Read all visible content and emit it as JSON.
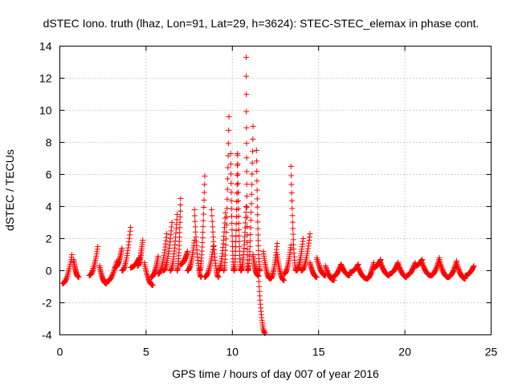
{
  "chart_data": {
    "type": "scatter",
    "title": "dSTEC Iono. truth (lhaz, Lon=91, Lat=29, h=3624): STEC-STEC_elemax in phase cont.",
    "xlabel": "GPS time / hours of day 007 of year 2016",
    "ylabel": "dSTEC  / TECUs",
    "xlim": [
      0,
      25
    ],
    "ylim": [
      -4,
      14
    ],
    "x_ticks": [
      "0",
      "5",
      "10",
      "15",
      "20",
      "25"
    ],
    "x_tick_values": [
      0,
      5,
      10,
      15,
      20,
      25
    ],
    "y_ticks": [
      "-4",
      "-2",
      "0",
      "2",
      "4",
      "6",
      "8",
      "10",
      "12",
      "14"
    ],
    "y_tick_values": [
      -4,
      -2,
      0,
      2,
      4,
      6,
      8,
      10,
      12,
      14
    ],
    "grid": true,
    "marker": "+",
    "color": "#ff0000",
    "tracks": [
      {
        "x_start": 0.15,
        "x_end": 0.7,
        "y_start": -0.8,
        "y_end": 1.0,
        "shape": "rise"
      },
      {
        "x_start": 0.8,
        "x_end": 1.1,
        "y_start": 0.7,
        "y_end": -0.4,
        "shape": "fall"
      },
      {
        "x_start": 1.7,
        "x_end": 2.2,
        "y_start": -0.3,
        "y_end": 1.5,
        "shape": "rise"
      },
      {
        "x_start": 2.3,
        "x_end": 2.7,
        "y_start": 0.3,
        "y_end": -0.8,
        "shape": "fall"
      },
      {
        "x_start": 2.7,
        "x_end": 3.3,
        "y_start": -0.7,
        "y_end": 0.6,
        "shape": "rise"
      },
      {
        "x_start": 3.2,
        "x_end": 3.6,
        "y_start": 0.2,
        "y_end": 1.4,
        "shape": "rise"
      },
      {
        "x_start": 3.6,
        "x_end": 4.1,
        "y_start": 0.0,
        "y_end": 2.7,
        "shape": "rise"
      },
      {
        "x_start": 4.1,
        "x_end": 4.6,
        "y_start": 0.2,
        "y_end": 0.8,
        "shape": "rise"
      },
      {
        "x_start": 4.5,
        "x_end": 4.8,
        "y_start": 0.3,
        "y_end": 1.9,
        "shape": "rise"
      },
      {
        "x_start": 4.9,
        "x_end": 5.4,
        "y_start": 0.5,
        "y_end": -0.9,
        "shape": "fall"
      },
      {
        "x_start": 5.3,
        "x_end": 5.7,
        "y_start": -0.4,
        "y_end": 0.9,
        "shape": "rise"
      },
      {
        "x_start": 5.7,
        "x_end": 6.2,
        "y_start": -0.2,
        "y_end": 2.3,
        "shape": "rise"
      },
      {
        "x_start": 6.0,
        "x_end": 6.5,
        "y_start": 0.0,
        "y_end": 3.0,
        "shape": "rise"
      },
      {
        "x_start": 6.4,
        "x_end": 6.8,
        "y_start": 0.0,
        "y_end": 3.5,
        "shape": "rise"
      },
      {
        "x_start": 6.8,
        "x_end": 7.0,
        "y_start": 0.0,
        "y_end": 4.5,
        "shape": "rise"
      },
      {
        "x_start": 7.0,
        "x_end": 7.4,
        "y_start": 0.4,
        "y_end": 1.2,
        "shape": "rise"
      },
      {
        "x_start": 7.4,
        "x_end": 7.8,
        "y_start": 0.0,
        "y_end": 1.9,
        "shape": "rise"
      },
      {
        "x_start": 7.8,
        "x_end": 8.2,
        "y_start": 3.8,
        "y_end": -0.4,
        "shape": "fall"
      },
      {
        "x_start": 8.1,
        "x_end": 8.4,
        "y_start": 0.0,
        "y_end": 5.9,
        "shape": "rise"
      },
      {
        "x_start": 8.4,
        "x_end": 8.9,
        "y_start": -0.4,
        "y_end": 1.5,
        "shape": "rise"
      },
      {
        "x_start": 8.8,
        "x_end": 9.2,
        "y_start": 3.8,
        "y_end": -0.4,
        "shape": "fall"
      },
      {
        "x_start": 9.2,
        "x_end": 9.6,
        "y_start": 0.0,
        "y_end": 3.6,
        "shape": "rise"
      },
      {
        "x_start": 9.5,
        "x_end": 9.8,
        "y_start": 0.0,
        "y_end": 9.6,
        "shape": "rise"
      },
      {
        "x_start": 9.9,
        "x_end": 10.1,
        "y_start": 7.3,
        "y_end": 0.0,
        "shape": "fall"
      },
      {
        "x_start": 10.1,
        "x_end": 10.3,
        "y_start": 0.0,
        "y_end": 7.2,
        "shape": "rise"
      },
      {
        "x_start": 10.3,
        "x_end": 10.5,
        "y_start": 7.3,
        "y_end": 0.0,
        "shape": "fall"
      },
      {
        "x_start": 10.5,
        "x_end": 10.8,
        "y_start": 0.0,
        "y_end": 4.0,
        "shape": "rise"
      },
      {
        "x_start": 10.8,
        "x_end": 10.9,
        "y_start": 13.3,
        "y_end": 0.0,
        "shape": "fall"
      },
      {
        "x_start": 10.9,
        "x_end": 11.2,
        "y_start": 0.0,
        "y_end": 9.0,
        "shape": "rise"
      },
      {
        "x_start": 11.2,
        "x_end": 11.5,
        "y_start": 1.0,
        "y_end": -0.3,
        "shape": "fall"
      },
      {
        "x_start": 11.4,
        "x_end": 11.6,
        "y_start": 7.5,
        "y_end": 0.0,
        "shape": "fall"
      },
      {
        "x_start": 11.5,
        "x_end": 11.9,
        "y_start": 0.0,
        "y_end": -3.9,
        "shape": "fall"
      },
      {
        "x_start": 11.8,
        "x_end": 12.2,
        "y_start": 1.2,
        "y_end": -0.5,
        "shape": "fall"
      },
      {
        "x_start": 12.2,
        "x_end": 12.6,
        "y_start": -0.5,
        "y_end": 1.7,
        "shape": "rise"
      },
      {
        "x_start": 12.6,
        "x_end": 13.0,
        "y_start": 1.0,
        "y_end": -0.6,
        "shape": "fall"
      },
      {
        "x_start": 13.0,
        "x_end": 13.4,
        "y_start": -0.2,
        "y_end": 1.6,
        "shape": "rise"
      },
      {
        "x_start": 13.4,
        "x_end": 13.7,
        "y_start": 6.5,
        "y_end": 0.0,
        "shape": "fall"
      },
      {
        "x_start": 13.7,
        "x_end": 14.1,
        "y_start": 0.0,
        "y_end": 2.0,
        "shape": "rise"
      },
      {
        "x_start": 14.0,
        "x_end": 14.5,
        "y_start": 0.0,
        "y_end": 2.3,
        "shape": "rise"
      },
      {
        "x_start": 14.5,
        "x_end": 14.9,
        "y_start": 0.5,
        "y_end": -0.4,
        "shape": "fall"
      },
      {
        "x_start": 14.9,
        "x_end": 15.4,
        "y_start": 0.8,
        "y_end": -0.3,
        "shape": "fall"
      },
      {
        "x_start": 15.4,
        "x_end": 15.9,
        "y_start": 0.3,
        "y_end": -0.6,
        "shape": "fall"
      },
      {
        "x_start": 15.8,
        "x_end": 16.3,
        "y_start": -0.4,
        "y_end": 0.4,
        "shape": "rise"
      },
      {
        "x_start": 16.3,
        "x_end": 16.8,
        "y_start": 0.4,
        "y_end": -0.3,
        "shape": "fall"
      },
      {
        "x_start": 16.8,
        "x_end": 17.3,
        "y_start": -0.1,
        "y_end": 0.4,
        "shape": "rise"
      },
      {
        "x_start": 17.3,
        "x_end": 17.8,
        "y_start": 0.2,
        "y_end": -0.5,
        "shape": "fall"
      },
      {
        "x_start": 17.8,
        "x_end": 18.2,
        "y_start": -0.5,
        "y_end": 0.5,
        "shape": "rise"
      },
      {
        "x_start": 18.2,
        "x_end": 18.6,
        "y_start": 0.2,
        "y_end": 0.7,
        "shape": "rise"
      },
      {
        "x_start": 18.6,
        "x_end": 19.1,
        "y_start": 0.5,
        "y_end": -0.3,
        "shape": "fall"
      },
      {
        "x_start": 19.1,
        "x_end": 19.6,
        "y_start": -0.2,
        "y_end": 0.5,
        "shape": "rise"
      },
      {
        "x_start": 19.6,
        "x_end": 20.1,
        "y_start": 0.5,
        "y_end": -0.4,
        "shape": "fall"
      },
      {
        "x_start": 20.1,
        "x_end": 20.6,
        "y_start": -0.3,
        "y_end": 0.5,
        "shape": "rise"
      },
      {
        "x_start": 20.6,
        "x_end": 21.0,
        "y_start": 0.3,
        "y_end": 0.7,
        "shape": "rise"
      },
      {
        "x_start": 21.0,
        "x_end": 21.5,
        "y_start": 0.5,
        "y_end": -0.3,
        "shape": "fall"
      },
      {
        "x_start": 21.5,
        "x_end": 22.0,
        "y_start": -0.3,
        "y_end": 0.8,
        "shape": "rise"
      },
      {
        "x_start": 22.0,
        "x_end": 22.5,
        "y_start": 0.7,
        "y_end": -0.4,
        "shape": "fall"
      },
      {
        "x_start": 22.5,
        "x_end": 23.0,
        "y_start": -0.4,
        "y_end": 0.6,
        "shape": "rise"
      },
      {
        "x_start": 23.0,
        "x_end": 23.5,
        "y_start": 0.5,
        "y_end": -0.5,
        "shape": "fall"
      },
      {
        "x_start": 23.5,
        "x_end": 24.0,
        "y_start": -0.3,
        "y_end": 0.3,
        "shape": "rise"
      }
    ]
  }
}
